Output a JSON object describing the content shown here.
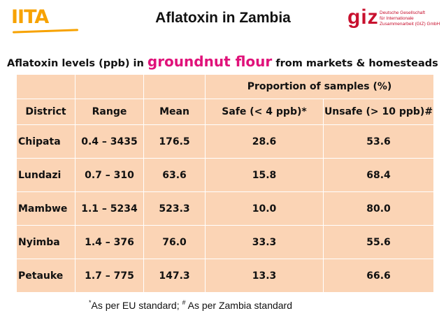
{
  "header": {
    "left_logo_text": "IITA",
    "title": "Aflatoxin in Zambia",
    "right_logo_text": "giz",
    "right_logo_subtext": [
      "Deutsche Gesellschaft",
      "für Internationale",
      "Zusammenarbeit (GIZ) GmbH"
    ]
  },
  "subtitle": {
    "prefix": "Aflatoxin levels (ppb) in ",
    "highlight": "groundnut flour",
    "suffix": " from markets & homesteads"
  },
  "table": {
    "group_header": "Proportion of samples (%)",
    "columns": [
      "District",
      "Range",
      "Mean",
      "Safe (< 4 ppb)*",
      "Unsafe (> 10 ppb)#"
    ],
    "rows": [
      {
        "district": "Chipata",
        "range": "0.4 – 3435",
        "mean": "176.5",
        "safe": "28.6",
        "unsafe": "53.6"
      },
      {
        "district": "Lundazi",
        "range": "0.7 – 310",
        "mean": "63.6",
        "safe": "15.8",
        "unsafe": "68.4"
      },
      {
        "district": "Mambwe",
        "range": "1.1 – 5234",
        "mean": "523.3",
        "safe": "10.0",
        "unsafe": "80.0"
      },
      {
        "district": "Nyimba",
        "range": "1.4 – 376",
        "mean": "76.0",
        "safe": "33.3",
        "unsafe": "55.6"
      },
      {
        "district": "Petauke",
        "range": "1.7 – 775",
        "mean": "147.3",
        "safe": "13.3",
        "unsafe": "66.6"
      }
    ]
  },
  "footnote": {
    "mark1": "*",
    "text1": "As per EU standard; ",
    "mark2": "#",
    "text2": " As per Zambia standard"
  },
  "colors": {
    "table_fill": "#fbd4b5",
    "highlight": "#e0127a",
    "iita": "#f7a200",
    "giz": "#c8102e"
  }
}
